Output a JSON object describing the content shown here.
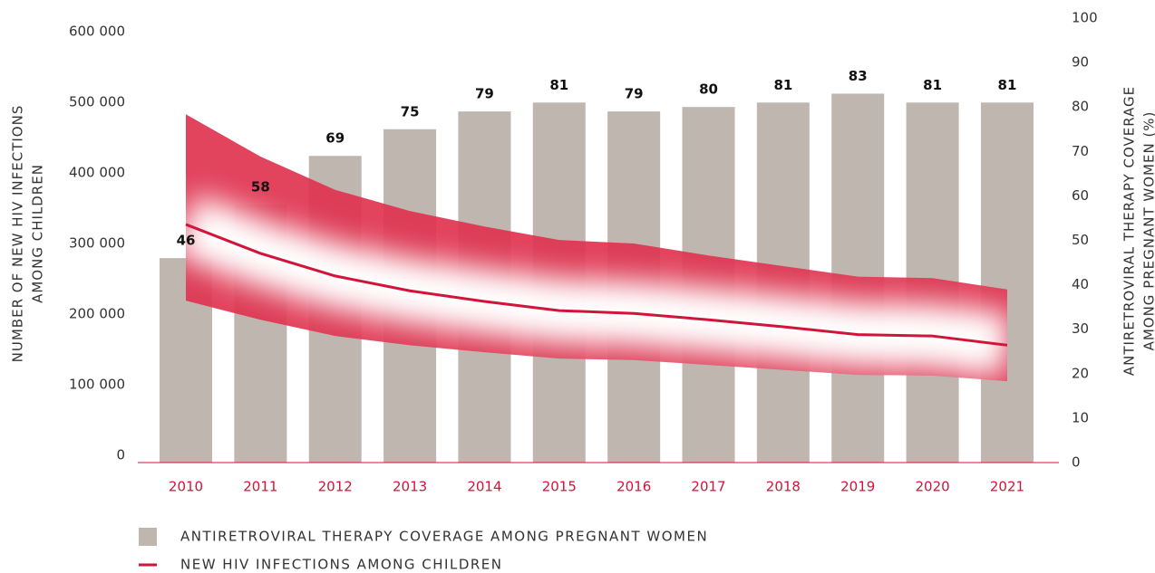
{
  "chart_data": {
    "type": "bar_line",
    "categories": [
      "2010",
      "2011",
      "2012",
      "2013",
      "2014",
      "2015",
      "2016",
      "2017",
      "2018",
      "2019",
      "2020",
      "2021"
    ],
    "series": [
      {
        "name": "ANTIRETROVIRAL THERAPY COVERAGE AMONG PREGNANT WOMEN",
        "type": "bar",
        "axis": "y2",
        "color": "#bfb6b0",
        "values": [
          46,
          58,
          69,
          75,
          79,
          81,
          79,
          80,
          81,
          83,
          81,
          81
        ]
      },
      {
        "name": "NEW HIV INFECTIONS AMONG CHILDREN",
        "type": "line",
        "axis": "y",
        "color": "#d2143a",
        "band_color": "#e0334f",
        "values": [
          327000,
          286000,
          254000,
          233000,
          218000,
          205000,
          201000,
          192000,
          182000,
          171000,
          169000,
          156000
        ],
        "upper": [
          483000,
          423000,
          376000,
          346000,
          324000,
          305000,
          300000,
          283000,
          268000,
          253000,
          251000,
          235000
        ],
        "lower": [
          219000,
          192000,
          169000,
          156000,
          146000,
          137000,
          135000,
          128000,
          121000,
          114000,
          113000,
          105000
        ]
      }
    ],
    "ylabel": [
      "NUMBER OF NEW HIV INFECTIONS",
      "AMONG CHILDREN"
    ],
    "y2label": [
      "ANTIRETROVIRAL THERAPY COVERAGE",
      "AMONG PREGNANT WOMEN (%)"
    ],
    "ylim": [
      0,
      600000
    ],
    "yticks": [
      0,
      {
        "value": 100000,
        "label": "100 000"
      },
      {
        "value": 200000,
        "label": "200 000"
      },
      {
        "value": 300000,
        "label": "300 000"
      },
      {
        "value": 400000,
        "label": "400 000"
      },
      {
        "value": 500000,
        "label": "500 000"
      },
      {
        "value": 600000,
        "label": "600 000"
      }
    ],
    "y2lim": [
      0,
      100
    ],
    "y2ticks": [
      0,
      10,
      20,
      30,
      40,
      50,
      60,
      70,
      80,
      90,
      100
    ]
  }
}
